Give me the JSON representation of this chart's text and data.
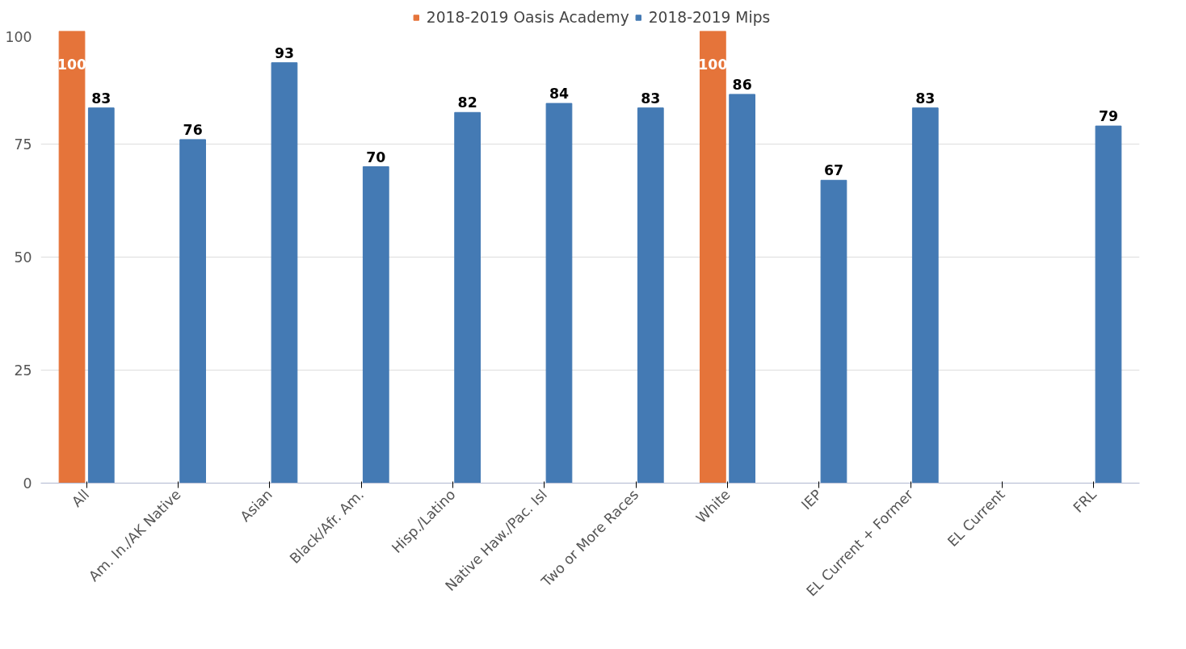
{
  "chart_data": {
    "type": "bar",
    "categories": [
      "All",
      "Am. In./AK Native",
      "Asian",
      "Black/Afr. Am.",
      "Hisp./Latino",
      "Native Haw./Pac. Isl",
      "Two or More Races",
      "White",
      "IEP",
      "EL Current + Former",
      "EL Current",
      "FRL"
    ],
    "series": [
      {
        "name": "2018-2019 Oasis Academy",
        "color": "#e5743a",
        "values": [
          100,
          null,
          null,
          null,
          null,
          null,
          null,
          100,
          null,
          null,
          null,
          null
        ]
      },
      {
        "name": "2018-2019 Mips",
        "color": "#447ab4",
        "values": [
          83,
          76,
          93,
          70,
          82,
          84,
          83,
          86,
          67,
          83,
          null,
          79
        ]
      }
    ],
    "ylim": [
      0,
      100
    ],
    "yticks": [
      0,
      25,
      50,
      75,
      100
    ],
    "grid": "y",
    "legend": "top",
    "data_labels": true
  }
}
